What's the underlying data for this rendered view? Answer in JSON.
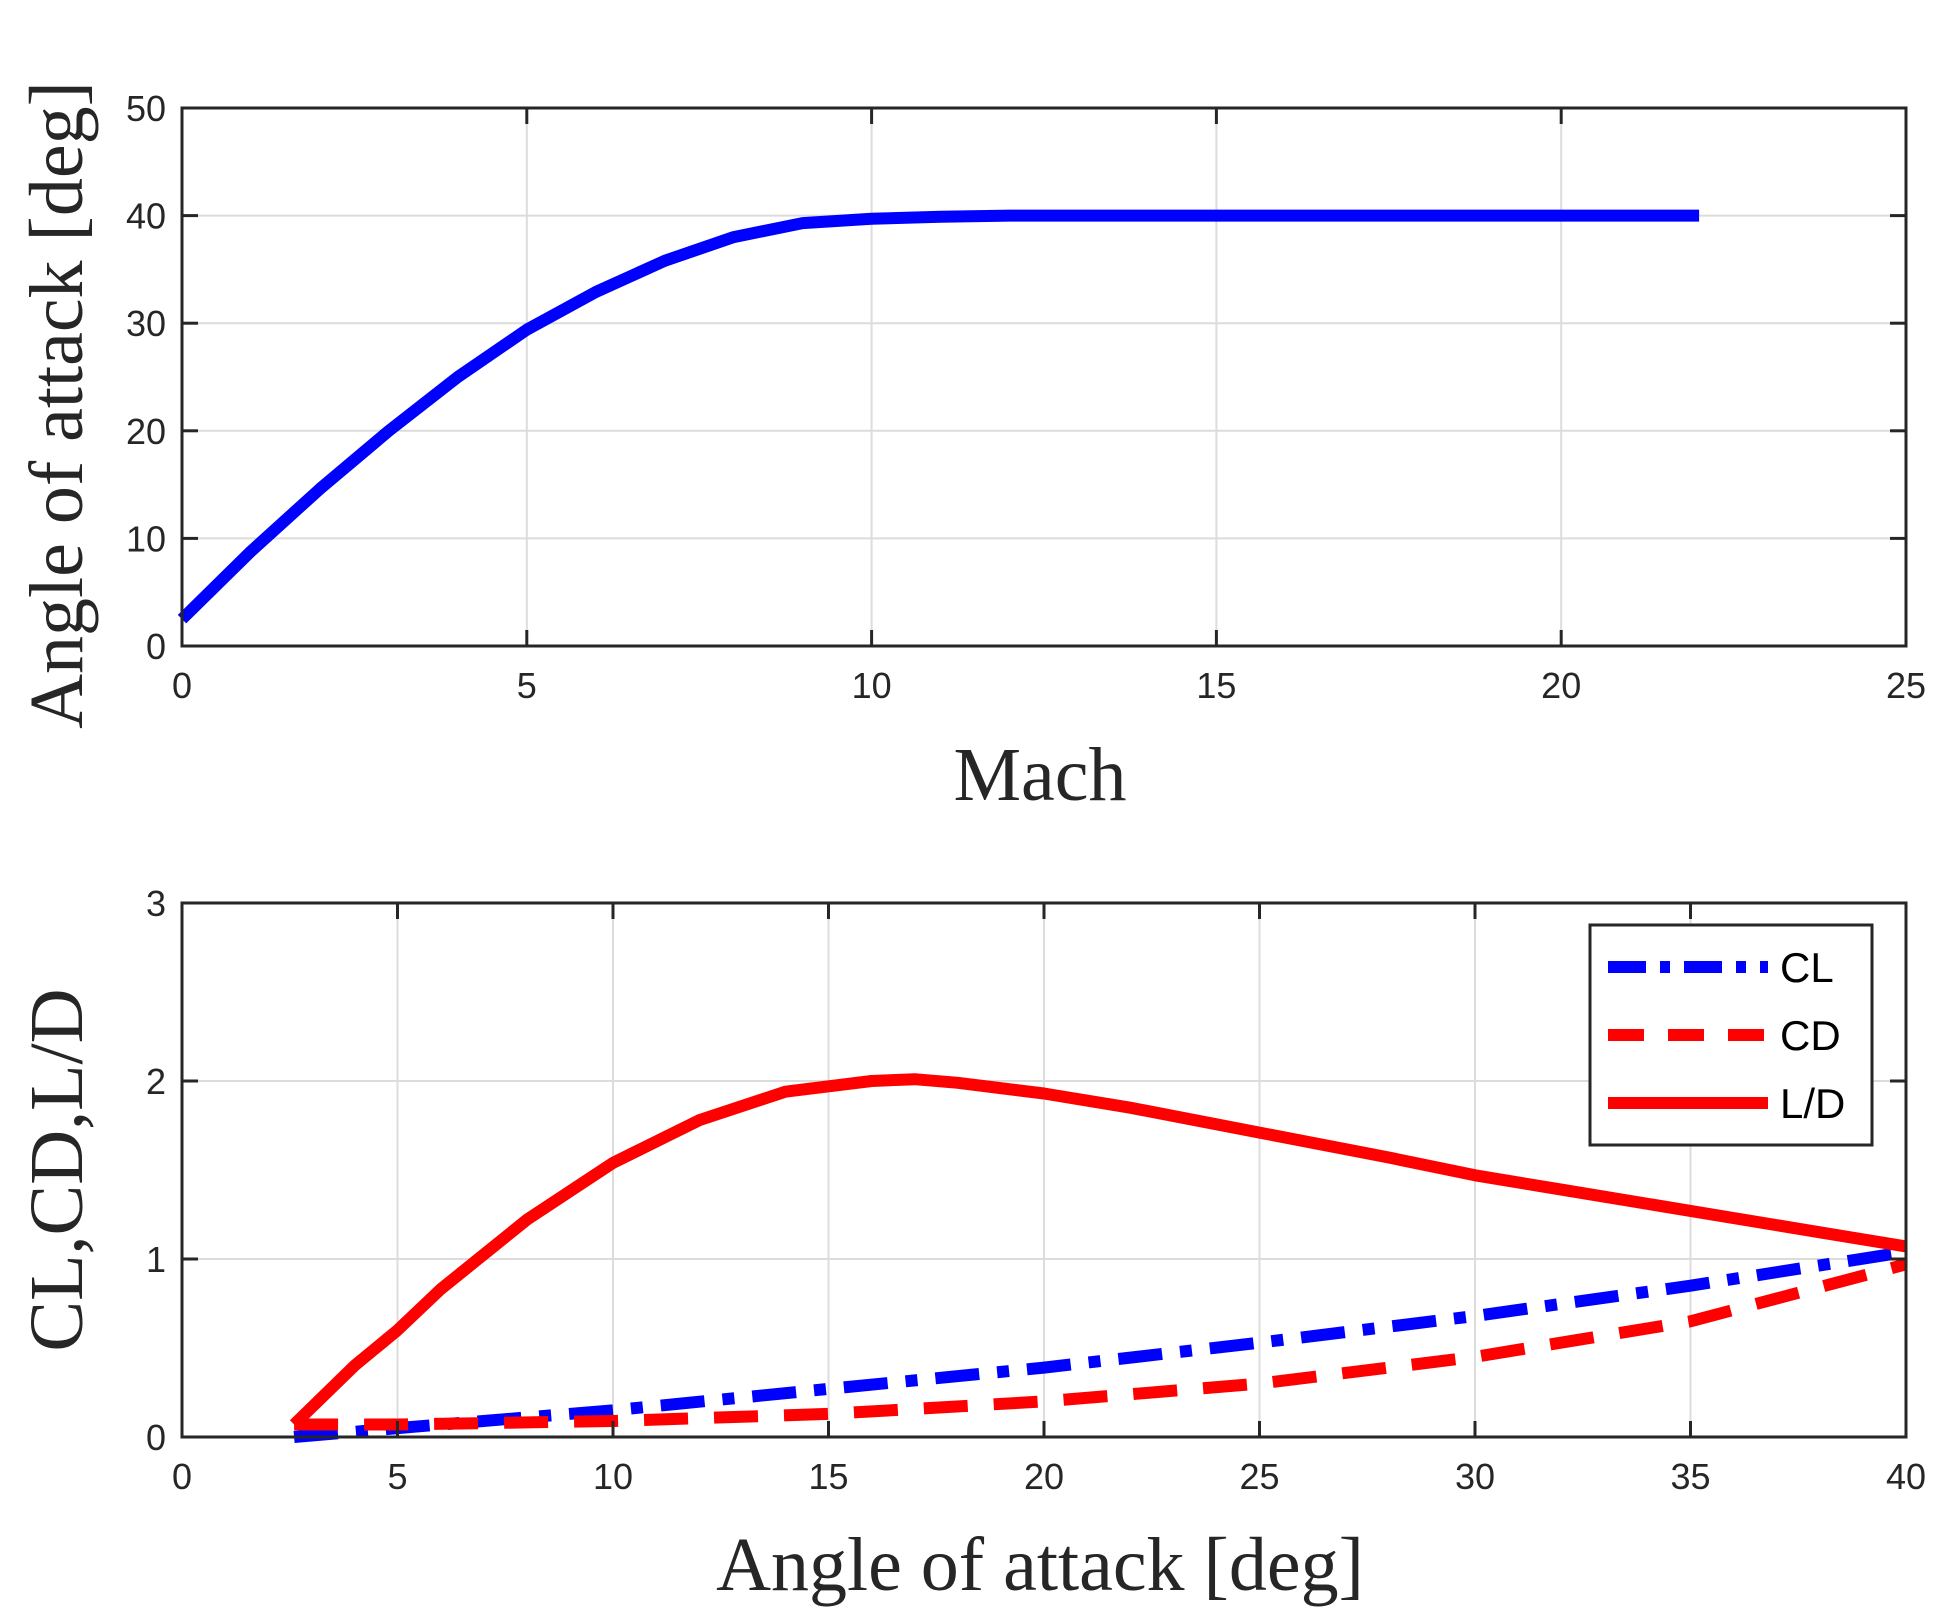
{
  "chart_data": [
    {
      "type": "line",
      "xlabel": "Mach",
      "ylabel": "Angle of attack [deg]",
      "xlim": [
        0,
        25
      ],
      "ylim": [
        0,
        50
      ],
      "xticks": [
        0,
        5,
        10,
        15,
        20,
        25
      ],
      "yticks": [
        0,
        10,
        20,
        30,
        40,
        50
      ],
      "grid": true,
      "series": [
        {
          "color": "#0000ff",
          "style": "solid",
          "x": [
            0,
            1,
            2,
            3,
            4,
            5,
            6,
            7,
            8,
            9,
            10,
            11,
            12,
            13,
            14,
            16,
            18,
            20,
            22
          ],
          "y": [
            2.5,
            8.8,
            14.6,
            20,
            25,
            29.4,
            32.9,
            35.8,
            38,
            39.3,
            39.7,
            39.9,
            40,
            40,
            40,
            40,
            40,
            40,
            40
          ]
        }
      ]
    },
    {
      "type": "line",
      "xlabel": "Angle of attack [deg]",
      "ylabel": "CL,CD,L/D",
      "xlim": [
        0,
        40
      ],
      "ylim": [
        0,
        3
      ],
      "xticks": [
        0,
        5,
        10,
        15,
        20,
        25,
        30,
        35,
        40
      ],
      "yticks": [
        0,
        1,
        2,
        3
      ],
      "grid": true,
      "legend_position": "top-right",
      "series": [
        {
          "name": "CL",
          "color": "#0000ff",
          "style": "dashdot",
          "x": [
            2.6,
            5,
            10,
            15,
            20,
            25,
            30,
            35,
            40
          ],
          "y": [
            0.0,
            0.05,
            0.15,
            0.27,
            0.39,
            0.53,
            0.68,
            0.85,
            1.04
          ]
        },
        {
          "name": "CD",
          "color": "#ff0000",
          "style": "dashed",
          "x": [
            2.6,
            5,
            10,
            15,
            20,
            25,
            30,
            35,
            40
          ],
          "y": [
            0.07,
            0.07,
            0.09,
            0.13,
            0.2,
            0.3,
            0.45,
            0.65,
            0.97
          ]
        },
        {
          "name": "L/D",
          "color": "#ff0000",
          "style": "solid",
          "x": [
            2.6,
            4,
            5,
            6,
            8,
            10,
            12,
            14,
            16,
            17,
            18,
            20,
            22,
            25,
            28,
            30,
            32,
            35,
            38,
            40
          ],
          "y": [
            0.07,
            0.4,
            0.6,
            0.83,
            1.22,
            1.54,
            1.78,
            1.94,
            2.0,
            2.01,
            1.99,
            1.93,
            1.85,
            1.71,
            1.57,
            1.47,
            1.39,
            1.27,
            1.15,
            1.07
          ]
        }
      ]
    }
  ]
}
